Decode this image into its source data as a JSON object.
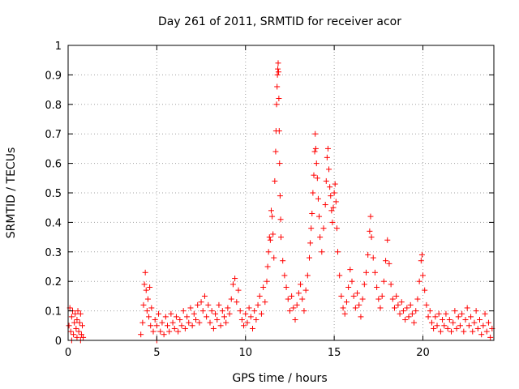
{
  "chart_data": {
    "type": "scatter",
    "title": "Day 261 of 2011, SRMTID for receiver acor",
    "xlabel": "GPS time / hours",
    "ylabel": "SRMTID / TECUs",
    "xlim": [
      0,
      24
    ],
    "ylim": [
      0,
      1
    ],
    "xticks": [
      0,
      5,
      10,
      15,
      20
    ],
    "xtick_labels": [
      "0",
      "5",
      "10",
      "15",
      "20"
    ],
    "yticks": [
      0,
      0.1,
      0.2,
      0.3,
      0.4,
      0.5,
      0.6,
      0.7,
      0.8,
      0.9,
      1
    ],
    "ytick_labels": [
      "0",
      "0.1",
      "0.2",
      "0.3",
      "0.4",
      "0.5",
      "0.6",
      "0.7",
      "0.8",
      "0.9",
      "1"
    ],
    "grid": true,
    "marker": "+",
    "marker_color": "#ff0000",
    "series": [
      {
        "name": "SRMTID",
        "points": [
          [
            0.05,
            0.05
          ],
          [
            0.1,
            0.11
          ],
          [
            0.15,
            0.03
          ],
          [
            0.2,
            0.08
          ],
          [
            0.25,
            0.1
          ],
          [
            0.3,
            0.02
          ],
          [
            0.35,
            0.06
          ],
          [
            0.4,
            0.09
          ],
          [
            0.45,
            0.04
          ],
          [
            0.5,
            0.07
          ],
          [
            0.55,
            0.1
          ],
          [
            0.6,
            0.03
          ],
          [
            0.65,
            0.06
          ],
          [
            0.7,
            0.09
          ],
          [
            0.75,
            0.02
          ],
          [
            0.8,
            0.05
          ],
          [
            0.85,
            0.01
          ],
          [
            0.2,
            0.0
          ],
          [
            0.5,
            0.01
          ],
          [
            0.7,
            0.0
          ],
          [
            4.1,
            0.02
          ],
          [
            4.2,
            0.06
          ],
          [
            4.25,
            0.12
          ],
          [
            4.3,
            0.19
          ],
          [
            4.35,
            0.23
          ],
          [
            4.4,
            0.17
          ],
          [
            4.45,
            0.1
          ],
          [
            4.5,
            0.14
          ],
          [
            4.55,
            0.08
          ],
          [
            4.6,
            0.18
          ],
          [
            4.65,
            0.05
          ],
          [
            4.7,
            0.11
          ],
          [
            4.8,
            0.03
          ],
          [
            4.9,
            0.07
          ],
          [
            5.0,
            0.0
          ],
          [
            5.0,
            0.05
          ],
          [
            5.1,
            0.09
          ],
          [
            5.2,
            0.03
          ],
          [
            5.3,
            0.06
          ],
          [
            5.4,
            0.02
          ],
          [
            5.5,
            0.08
          ],
          [
            5.6,
            0.05
          ],
          [
            5.7,
            0.03
          ],
          [
            5.8,
            0.09
          ],
          [
            5.9,
            0.06
          ],
          [
            6.0,
            0.04
          ],
          [
            6.1,
            0.08
          ],
          [
            6.2,
            0.03
          ],
          [
            6.3,
            0.07
          ],
          [
            6.4,
            0.05
          ],
          [
            6.5,
            0.1
          ],
          [
            6.6,
            0.04
          ],
          [
            6.7,
            0.08
          ],
          [
            6.8,
            0.06
          ],
          [
            6.9,
            0.11
          ],
          [
            7.0,
            0.05
          ],
          [
            7.1,
            0.09
          ],
          [
            7.2,
            0.07
          ],
          [
            7.3,
            0.12
          ],
          [
            7.4,
            0.06
          ],
          [
            7.5,
            0.13
          ],
          [
            7.6,
            0.1
          ],
          [
            7.7,
            0.15
          ],
          [
            7.8,
            0.08
          ],
          [
            7.9,
            0.12
          ],
          [
            8.0,
            0.06
          ],
          [
            8.1,
            0.1
          ],
          [
            8.2,
            0.04
          ],
          [
            8.3,
            0.09
          ],
          [
            8.4,
            0.07
          ],
          [
            8.5,
            0.12
          ],
          [
            8.6,
            0.05
          ],
          [
            8.7,
            0.1
          ],
          [
            8.8,
            0.08
          ],
          [
            8.9,
            0.06
          ],
          [
            9.0,
            0.11
          ],
          [
            9.1,
            0.09
          ],
          [
            9.2,
            0.14
          ],
          [
            9.3,
            0.19
          ],
          [
            9.4,
            0.21
          ],
          [
            9.5,
            0.13
          ],
          [
            9.6,
            0.17
          ],
          [
            9.7,
            0.1
          ],
          [
            9.8,
            0.07
          ],
          [
            9.9,
            0.05
          ],
          [
            10.0,
            0.09
          ],
          [
            10.1,
            0.06
          ],
          [
            10.2,
            0.11
          ],
          [
            10.3,
            0.08
          ],
          [
            10.4,
            0.04
          ],
          [
            10.5,
            0.1
          ],
          [
            10.6,
            0.07
          ],
          [
            10.7,
            0.12
          ],
          [
            10.8,
            0.15
          ],
          [
            10.9,
            0.09
          ],
          [
            11.0,
            0.18
          ],
          [
            11.1,
            0.13
          ],
          [
            11.2,
            0.2
          ],
          [
            11.25,
            0.25
          ],
          [
            11.3,
            0.3
          ],
          [
            11.35,
            0.35
          ],
          [
            11.4,
            0.34
          ],
          [
            11.45,
            0.44
          ],
          [
            11.5,
            0.42
          ],
          [
            11.55,
            0.36
          ],
          [
            11.6,
            0.28
          ],
          [
            11.65,
            0.54
          ],
          [
            11.7,
            0.64
          ],
          [
            11.72,
            0.71
          ],
          [
            11.75,
            0.8
          ],
          [
            11.78,
            0.86
          ],
          [
            11.8,
            0.9
          ],
          [
            11.82,
            0.92
          ],
          [
            11.84,
            0.94
          ],
          [
            11.86,
            0.91
          ],
          [
            11.88,
            0.82
          ],
          [
            11.9,
            0.71
          ],
          [
            11.92,
            0.6
          ],
          [
            11.95,
            0.49
          ],
          [
            11.98,
            0.41
          ],
          [
            12.0,
            0.35
          ],
          [
            12.1,
            0.27
          ],
          [
            12.2,
            0.22
          ],
          [
            12.3,
            0.18
          ],
          [
            12.4,
            0.14
          ],
          [
            12.5,
            0.1
          ],
          [
            12.6,
            0.15
          ],
          [
            12.7,
            0.11
          ],
          [
            12.8,
            0.07
          ],
          [
            12.9,
            0.12
          ],
          [
            13.0,
            0.16
          ],
          [
            13.1,
            0.19
          ],
          [
            13.2,
            0.14
          ],
          [
            13.3,
            0.1
          ],
          [
            13.4,
            0.17
          ],
          [
            13.5,
            0.22
          ],
          [
            13.6,
            0.28
          ],
          [
            13.65,
            0.33
          ],
          [
            13.7,
            0.38
          ],
          [
            13.75,
            0.43
          ],
          [
            13.8,
            0.5
          ],
          [
            13.85,
            0.56
          ],
          [
            13.9,
            0.64
          ],
          [
            13.93,
            0.7
          ],
          [
            13.96,
            0.65
          ],
          [
            14.0,
            0.6
          ],
          [
            14.05,
            0.55
          ],
          [
            14.1,
            0.48
          ],
          [
            14.15,
            0.42
          ],
          [
            14.2,
            0.35
          ],
          [
            14.3,
            0.3
          ],
          [
            14.4,
            0.38
          ],
          [
            14.5,
            0.46
          ],
          [
            14.55,
            0.54
          ],
          [
            14.6,
            0.62
          ],
          [
            14.65,
            0.65
          ],
          [
            14.7,
            0.58
          ],
          [
            14.75,
            0.52
          ],
          [
            14.8,
            0.49
          ],
          [
            14.85,
            0.44
          ],
          [
            14.9,
            0.4
          ],
          [
            14.95,
            0.45
          ],
          [
            15.0,
            0.5
          ],
          [
            15.05,
            0.53
          ],
          [
            15.1,
            0.47
          ],
          [
            15.15,
            0.38
          ],
          [
            15.2,
            0.3
          ],
          [
            15.3,
            0.22
          ],
          [
            15.4,
            0.15
          ],
          [
            15.5,
            0.11
          ],
          [
            15.6,
            0.09
          ],
          [
            15.7,
            0.13
          ],
          [
            15.8,
            0.18
          ],
          [
            15.9,
            0.24
          ],
          [
            16.0,
            0.2
          ],
          [
            16.1,
            0.15
          ],
          [
            16.2,
            0.11
          ],
          [
            16.3,
            0.16
          ],
          [
            16.4,
            0.12
          ],
          [
            16.5,
            0.08
          ],
          [
            16.6,
            0.14
          ],
          [
            16.7,
            0.19
          ],
          [
            16.8,
            0.23
          ],
          [
            16.9,
            0.29
          ],
          [
            17.0,
            0.37
          ],
          [
            17.05,
            0.42
          ],
          [
            17.1,
            0.35
          ],
          [
            17.2,
            0.28
          ],
          [
            17.3,
            0.23
          ],
          [
            17.4,
            0.18
          ],
          [
            17.5,
            0.14
          ],
          [
            17.6,
            0.11
          ],
          [
            17.7,
            0.15
          ],
          [
            17.8,
            0.2
          ],
          [
            17.9,
            0.27
          ],
          [
            18.0,
            0.34
          ],
          [
            18.1,
            0.26
          ],
          [
            18.2,
            0.19
          ],
          [
            18.3,
            0.14
          ],
          [
            18.4,
            0.11
          ],
          [
            18.5,
            0.15
          ],
          [
            18.6,
            0.12
          ],
          [
            18.7,
            0.09
          ],
          [
            18.8,
            0.13
          ],
          [
            18.9,
            0.1
          ],
          [
            19.0,
            0.07
          ],
          [
            19.1,
            0.11
          ],
          [
            19.2,
            0.08
          ],
          [
            19.3,
            0.12
          ],
          [
            19.4,
            0.09
          ],
          [
            19.5,
            0.06
          ],
          [
            19.6,
            0.1
          ],
          [
            19.7,
            0.14
          ],
          [
            19.8,
            0.2
          ],
          [
            19.9,
            0.27
          ],
          [
            19.95,
            0.29
          ],
          [
            20.0,
            0.22
          ],
          [
            20.1,
            0.17
          ],
          [
            20.2,
            0.12
          ],
          [
            20.3,
            0.08
          ],
          [
            20.4,
            0.1
          ],
          [
            20.5,
            0.06
          ],
          [
            20.6,
            0.04
          ],
          [
            20.7,
            0.08
          ],
          [
            20.8,
            0.05
          ],
          [
            20.9,
            0.09
          ],
          [
            21.0,
            0.03
          ],
          [
            21.1,
            0.07
          ],
          [
            21.2,
            0.05
          ],
          [
            21.3,
            0.09
          ],
          [
            21.4,
            0.04
          ],
          [
            21.5,
            0.07
          ],
          [
            21.6,
            0.03
          ],
          [
            21.7,
            0.06
          ],
          [
            21.8,
            0.1
          ],
          [
            21.9,
            0.04
          ],
          [
            22.0,
            0.08
          ],
          [
            22.1,
            0.05
          ],
          [
            22.2,
            0.09
          ],
          [
            22.3,
            0.03
          ],
          [
            22.4,
            0.07
          ],
          [
            22.5,
            0.11
          ],
          [
            22.6,
            0.05
          ],
          [
            22.7,
            0.08
          ],
          [
            22.8,
            0.03
          ],
          [
            22.9,
            0.06
          ],
          [
            23.0,
            0.1
          ],
          [
            23.1,
            0.04
          ],
          [
            23.2,
            0.07
          ],
          [
            23.3,
            0.02
          ],
          [
            23.4,
            0.05
          ],
          [
            23.5,
            0.09
          ],
          [
            23.6,
            0.03
          ],
          [
            23.7,
            0.06
          ],
          [
            23.8,
            0.01
          ],
          [
            23.9,
            0.04
          ]
        ]
      }
    ]
  }
}
